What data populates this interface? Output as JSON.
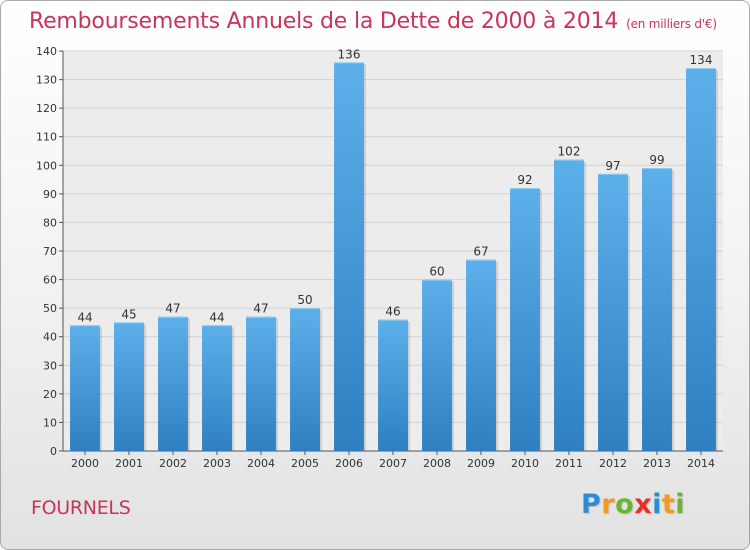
{
  "chart_data": {
    "type": "bar",
    "title": "Remboursements Annuels de la Dette de 2000 à 2014",
    "subtitle": "(en milliers d'€)",
    "categories": [
      "2000",
      "2001",
      "2002",
      "2003",
      "2004",
      "2005",
      "2006",
      "2007",
      "2008",
      "2009",
      "2010",
      "2011",
      "2012",
      "2013",
      "2014"
    ],
    "values": [
      44,
      45,
      47,
      44,
      47,
      50,
      136,
      46,
      60,
      67,
      92,
      102,
      97,
      99,
      134
    ],
    "ylim": [
      0,
      140
    ],
    "yticks": [
      0,
      10,
      20,
      30,
      40,
      50,
      60,
      70,
      80,
      90,
      100,
      110,
      120,
      130,
      140
    ],
    "grid": true,
    "bar_color": "#4aa3e0"
  },
  "commune": "FOURNELS",
  "logo": {
    "letters": [
      "P",
      "r",
      "o",
      "x",
      "i",
      "t",
      "i"
    ],
    "colors": [
      "#2e8bd6",
      "#f39a1e",
      "#6bb535",
      "#e2312d",
      "#2e8bd6",
      "#f39a1e",
      "#6bb535"
    ]
  }
}
